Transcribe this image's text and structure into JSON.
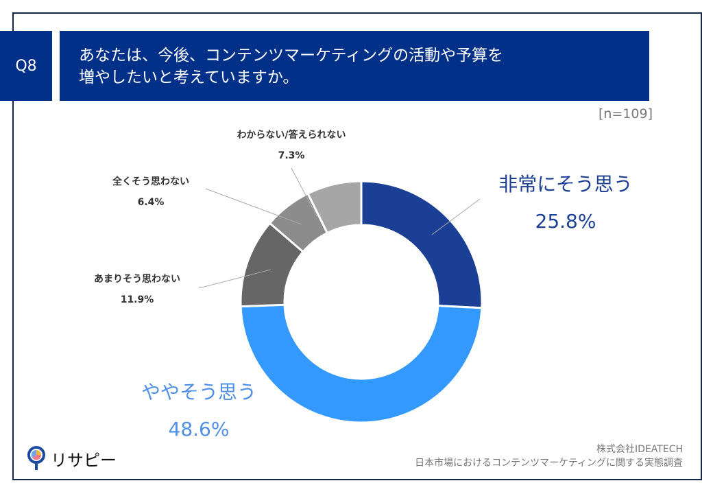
{
  "header": {
    "question_no": "Q8",
    "title_line1": "あなたは、今後、コンテンツマーケティングの活動や予算を",
    "title_line2": "増やしたいと考えていますか。"
  },
  "sample": "[n=109]",
  "chart_data": {
    "type": "pie",
    "variant": "donut",
    "start": "top, clockwise",
    "categories": [
      "非常にそう思う",
      "ややそう思う",
      "あまりそう思わない",
      "全くそう思わない",
      "わからない/答えられない"
    ],
    "values": [
      25.8,
      48.6,
      11.9,
      6.4,
      7.3
    ],
    "labels": [
      "25.8%",
      "48.6%",
      "11.9%",
      "6.4%",
      "7.3%"
    ],
    "colors": [
      "#1b3f94",
      "#3399ff",
      "#666666",
      "#8c8c8c",
      "#a6a6a6"
    ],
    "label_colors": [
      "#1b3f94",
      "#4f8fe6",
      "#333333",
      "#333333",
      "#333333"
    ]
  },
  "footer": {
    "company": "株式会社IDEATECH",
    "survey": "日本市場におけるコンテンツマーケティングに関する実態調査",
    "logo": "リサピー"
  }
}
